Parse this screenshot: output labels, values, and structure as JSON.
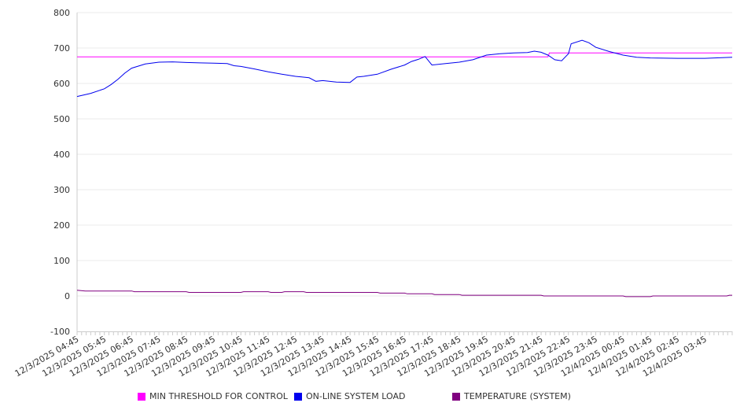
{
  "chart_data": {
    "type": "line",
    "title": "",
    "xlabel": "",
    "ylabel": "",
    "ylim": [
      -100,
      800
    ],
    "yticks": [
      -100,
      0,
      100,
      200,
      300,
      400,
      500,
      600,
      700,
      800
    ],
    "grid": true,
    "legend_position": "bottom",
    "x_start_label_hours": 0,
    "x_range_hours": [
      0,
      24
    ],
    "xtick_labels": [
      "12/3/2025 04:45",
      "12/3/2025 05:45",
      "12/3/2025 06:45",
      "12/3/2025 07:45",
      "12/3/2025 08:45",
      "12/3/2025 09:45",
      "12/3/2025 10:45",
      "12/3/2025 11:45",
      "12/3/2025 12:45",
      "12/3/2025 13:45",
      "12/3/2025 14:45",
      "12/3/2025 15:45",
      "12/3/2025 16:45",
      "12/3/2025 17:45",
      "12/3/2025 18:45",
      "12/3/2025 19:45",
      "12/3/2025 20:45",
      "12/3/2025 21:45",
      "12/3/2025 22:45",
      "12/3/2025 23:45",
      "12/4/2025 00:45",
      "12/4/2025 01:45",
      "12/4/2025 02:45",
      "12/4/2025 03:45"
    ],
    "series": [
      {
        "name": "MIN THRESHOLD FOR CONTROL",
        "color": "#ff00ff",
        "x": [
          0,
          17.25,
          17.3,
          24
        ],
        "y": [
          675,
          675,
          686,
          686
        ]
      },
      {
        "name": "ON-LINE SYSTEM LOAD",
        "color": "#0000ee",
        "x": [
          0,
          0.5,
          1,
          1.25,
          1.5,
          1.75,
          2,
          2.5,
          3,
          3.5,
          4,
          4.5,
          5,
          5.5,
          5.75,
          6,
          6.5,
          7,
          7.5,
          8,
          8.5,
          8.75,
          9,
          9.5,
          10,
          10.25,
          10.5,
          11,
          11.5,
          12,
          12.25,
          12.5,
          12.75,
          13,
          13.5,
          14,
          14.5,
          15,
          15.5,
          16,
          16.5,
          16.75,
          17,
          17.25,
          17.5,
          17.75,
          18,
          18.1,
          18.5,
          18.75,
          19,
          19.5,
          20,
          20.5,
          21,
          22,
          23,
          24
        ],
        "y": [
          563,
          572,
          585,
          597,
          612,
          629,
          643,
          655,
          660,
          661,
          659,
          658,
          657,
          656,
          650,
          648,
          641,
          633,
          626,
          620,
          616,
          606,
          608,
          604,
          603,
          618,
          620,
          626,
          640,
          652,
          662,
          668,
          676,
          652,
          656,
          660,
          667,
          680,
          684,
          686,
          687,
          691,
          688,
          680,
          667,
          664,
          684,
          712,
          722,
          715,
          702,
          690,
          680,
          674,
          672,
          671,
          671,
          674
        ]
      },
      {
        "name": "TEMPERATURE (SYSTEM)",
        "color": "#800080",
        "x": [
          0,
          0.3,
          2,
          2.1,
          4,
          4.1,
          6,
          6.1,
          7,
          7.1,
          7.5,
          7.6,
          8.3,
          8.4,
          11,
          11.1,
          12,
          12.1,
          13,
          13.1,
          14,
          14.1,
          17,
          17.1,
          20,
          20.1,
          21,
          21.1,
          23.8,
          23.9,
          24
        ],
        "y": [
          16,
          14,
          14,
          12,
          12,
          10,
          10,
          12,
          12,
          10,
          10,
          12,
          12,
          10,
          10,
          8,
          8,
          6,
          6,
          4,
          4,
          2,
          2,
          0,
          0,
          -2,
          -2,
          0,
          0,
          2,
          2
        ]
      }
    ]
  }
}
